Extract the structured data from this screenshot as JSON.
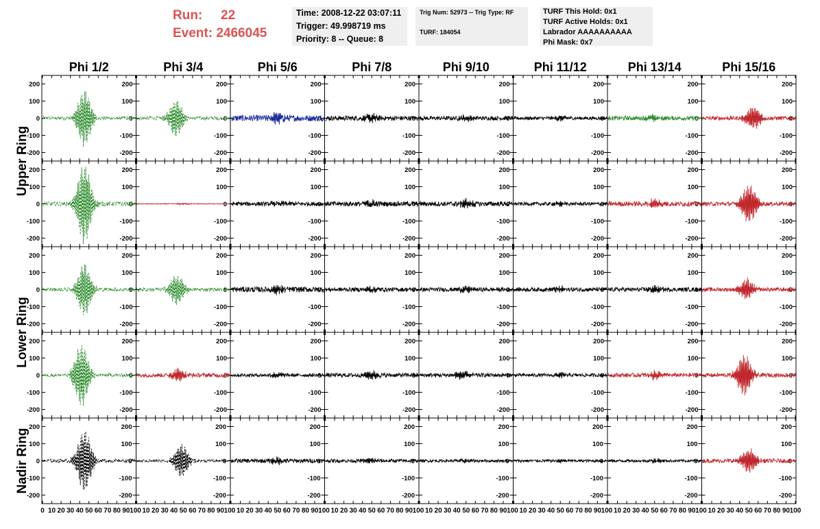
{
  "header": {
    "run_label": "Run:",
    "run_value": "22",
    "event_label": "Event:",
    "event_value": "2466045",
    "time_line": "Time: 2008-12-22 03:07:11",
    "trigger_line": "Trigger: 49.998719 ms",
    "priority_line": "Priority: 8 -- Queue: 8",
    "trig_line": "Trig Num: 52973 -- Trig Type: RF",
    "turf_line": "TURF: 184054",
    "turf_hold_line": "TURF This Hold: 0x1",
    "turf_active_line": "TURF Active Holds: 0x1",
    "labrador_line": "Labrador AAAAAAAAAA",
    "phi_mask_line": "Phi Mask: 0x7",
    "run_color": "#d9534f"
  },
  "chart_data": {
    "type": "line",
    "columns": [
      "Phi 1/2",
      "Phi 3/4",
      "Phi 5/6",
      "Phi 7/8",
      "Phi 9/10",
      "Phi 11/12",
      "Phi 13/14",
      "Phi 15/16"
    ],
    "ring_labels": [
      "Upper Ring",
      "Lower Ring",
      "Nadir Ring"
    ],
    "rows_per_ring": [
      2,
      2,
      1
    ],
    "xlim": [
      0,
      100
    ],
    "ylim": [
      -250,
      250
    ],
    "y_ticks": [
      -200,
      -100,
      0,
      100,
      200
    ],
    "x_ticks": [
      0,
      10,
      20,
      30,
      40,
      50,
      60,
      70,
      80,
      90,
      100
    ],
    "colors": {
      "g": "#2a8a2a",
      "r": "#c0282d",
      "b": "#1a2a9c",
      "k": "#000000"
    },
    "panels": [
      [
        {
          "color": "g",
          "dashed": true,
          "peak_amplitude": 160,
          "peak_x": 45,
          "noise": 10
        },
        {
          "color": "g",
          "dashed": true,
          "peak_amplitude": 105,
          "peak_x": 42,
          "noise": 10
        },
        {
          "color": "b",
          "dashed": false,
          "peak_amplitude": 25,
          "peak_x": 50,
          "noise": 18
        },
        {
          "color": "k",
          "dashed": false,
          "peak_amplitude": 20,
          "peak_x": 50,
          "noise": 14
        },
        {
          "color": "k",
          "dashed": false,
          "peak_amplitude": 15,
          "peak_x": 50,
          "noise": 12
        },
        {
          "color": "k",
          "dashed": false,
          "peak_amplitude": 12,
          "peak_x": 50,
          "noise": 10
        },
        {
          "color": "g",
          "dashed": false,
          "peak_amplitude": 18,
          "peak_x": 50,
          "noise": 12
        },
        {
          "color": "r",
          "dashed": false,
          "peak_amplitude": 65,
          "peak_x": 55,
          "noise": 12
        }
      ],
      [
        {
          "color": "g",
          "dashed": true,
          "peak_amplitude": 230,
          "peak_x": 45,
          "noise": 12
        },
        {
          "color": "r",
          "dashed": false,
          "peak_amplitude": 3,
          "peak_x": 50,
          "noise": 2
        },
        {
          "color": "k",
          "dashed": false,
          "peak_amplitude": 15,
          "peak_x": 50,
          "noise": 12
        },
        {
          "color": "k",
          "dashed": false,
          "peak_amplitude": 18,
          "peak_x": 50,
          "noise": 14
        },
        {
          "color": "k",
          "dashed": false,
          "peak_amplitude": 25,
          "peak_x": 50,
          "noise": 14
        },
        {
          "color": "k",
          "dashed": false,
          "peak_amplitude": 12,
          "peak_x": 50,
          "noise": 10
        },
        {
          "color": "r",
          "dashed": false,
          "peak_amplitude": 25,
          "peak_x": 50,
          "noise": 14
        },
        {
          "color": "r",
          "dashed": false,
          "peak_amplitude": 110,
          "peak_x": 50,
          "noise": 12
        }
      ],
      [
        {
          "color": "g",
          "dashed": true,
          "peak_amplitude": 150,
          "peak_x": 45,
          "noise": 10
        },
        {
          "color": "g",
          "dashed": true,
          "peak_amplitude": 85,
          "peak_x": 43,
          "noise": 10
        },
        {
          "color": "k",
          "dashed": false,
          "peak_amplitude": 20,
          "peak_x": 50,
          "noise": 16
        },
        {
          "color": "k",
          "dashed": false,
          "peak_amplitude": 15,
          "peak_x": 50,
          "noise": 12
        },
        {
          "color": "k",
          "dashed": false,
          "peak_amplitude": 15,
          "peak_x": 50,
          "noise": 12
        },
        {
          "color": "k",
          "dashed": false,
          "peak_amplitude": 15,
          "peak_x": 50,
          "noise": 12
        },
        {
          "color": "k",
          "dashed": false,
          "peak_amplitude": 15,
          "peak_x": 50,
          "noise": 12
        },
        {
          "color": "r",
          "dashed": false,
          "peak_amplitude": 60,
          "peak_x": 48,
          "noise": 12
        }
      ],
      [
        {
          "color": "g",
          "dashed": true,
          "peak_amplitude": 180,
          "peak_x": 42,
          "noise": 10
        },
        {
          "color": "r",
          "dashed": false,
          "peak_amplitude": 35,
          "peak_x": 45,
          "noise": 12
        },
        {
          "color": "k",
          "dashed": false,
          "peak_amplitude": 15,
          "peak_x": 50,
          "noise": 10
        },
        {
          "color": "k",
          "dashed": false,
          "peak_amplitude": 20,
          "peak_x": 50,
          "noise": 12
        },
        {
          "color": "k",
          "dashed": false,
          "peak_amplitude": 22,
          "peak_x": 45,
          "noise": 12
        },
        {
          "color": "k",
          "dashed": false,
          "peak_amplitude": 12,
          "peak_x": 50,
          "noise": 10
        },
        {
          "color": "r",
          "dashed": false,
          "peak_amplitude": 22,
          "peak_x": 50,
          "noise": 12
        },
        {
          "color": "r",
          "dashed": false,
          "peak_amplitude": 120,
          "peak_x": 45,
          "noise": 12
        }
      ],
      [
        {
          "color": "k",
          "dashed": true,
          "peak_amplitude": 180,
          "peak_x": 45,
          "noise": 10
        },
        {
          "color": "k",
          "dashed": true,
          "peak_amplitude": 95,
          "peak_x": 48,
          "noise": 8
        },
        {
          "color": "k",
          "dashed": false,
          "peak_amplitude": 15,
          "peak_x": 50,
          "noise": 12
        },
        {
          "color": "k",
          "dashed": false,
          "peak_amplitude": 12,
          "peak_x": 50,
          "noise": 10
        },
        {
          "color": "k",
          "dashed": false,
          "peak_amplitude": 10,
          "peak_x": 50,
          "noise": 8
        },
        {
          "color": "k",
          "dashed": false,
          "peak_amplitude": 10,
          "peak_x": 50,
          "noise": 8
        },
        {
          "color": "k",
          "dashed": false,
          "peak_amplitude": 10,
          "peak_x": 50,
          "noise": 8
        },
        {
          "color": "r",
          "dashed": false,
          "peak_amplitude": 70,
          "peak_x": 50,
          "noise": 12
        }
      ]
    ]
  }
}
